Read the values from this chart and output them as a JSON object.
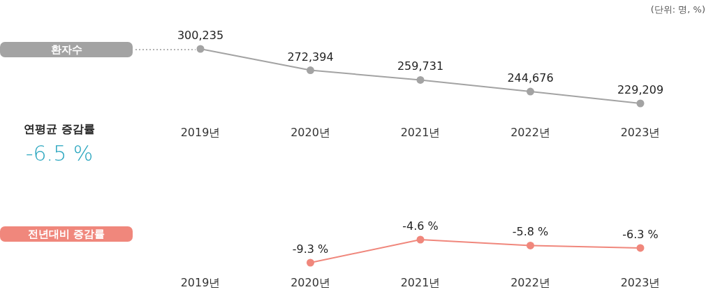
{
  "chart_data": [
    {
      "type": "line",
      "categories": [
        "2019년",
        "2020년",
        "2021년",
        "2022년",
        "2023년"
      ],
      "series": [
        {
          "name": "환자수",
          "color": "#a3a3a3",
          "values": [
            300235,
            272394,
            259731,
            244676,
            229209
          ],
          "value_labels": [
            "300,235",
            "272,394",
            "259,731",
            "244,676",
            "229,209"
          ]
        }
      ],
      "marker": "circle",
      "line_style": "solid",
      "legend": "left",
      "annotations": [
        "(단위: 명, %)",
        "연평균 증감률",
        "-6.5 %"
      ]
    },
    {
      "type": "line",
      "categories": [
        "2019년",
        "2020년",
        "2021년",
        "2022년",
        "2023년"
      ],
      "series": [
        {
          "name": "전년대비 증감률",
          "color": "#f0877c",
          "values": [
            null,
            -9.3,
            -4.6,
            -5.8,
            -6.3
          ],
          "value_labels": [
            null,
            "-9.3 %",
            "-4.6 %",
            "-5.8 %",
            "-6.3 %"
          ]
        }
      ],
      "marker": "circle",
      "line_style": "solid",
      "legend": "left"
    }
  ]
}
